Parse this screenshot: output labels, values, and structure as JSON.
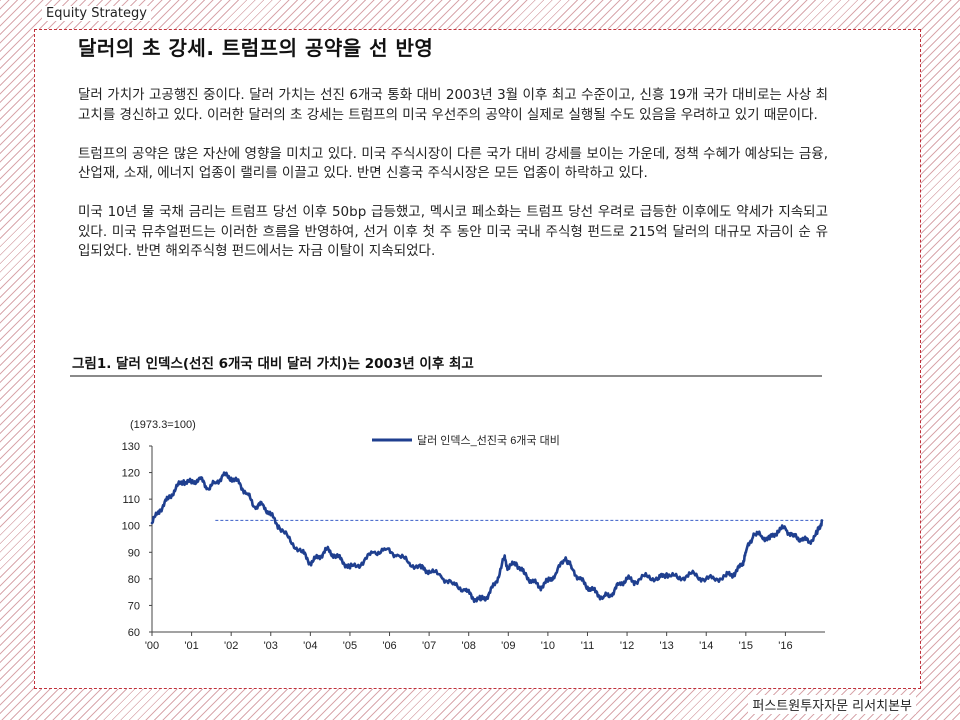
{
  "header": {
    "section": "Equity Strategy"
  },
  "title": "달러의 초 강세. 트럼프의 공약을 선 반영",
  "paragraphs": [
    "달러 가치가 고공행진 중이다. 달러 가치는 선진 6개국 통화 대비 2003년 3월 이후 최고 수준이고, 신흥 19개 국가 대비로는 사상 최고치를 경신하고 있다. 이러한 달러의 초 강세는 트럼프의 미국 우선주의 공약이 실제로 실행될 수도 있음을 우려하고 있기 때문이다.",
    "트럼프의 공약은 많은 자산에 영향을 미치고 있다. 미국 주식시장이 다른 국가 대비 강세를 보이는 가운데, 정책 수혜가 예상되는 금융, 산업재, 소재, 에너지 업종이 랠리를 이끌고 있다. 반면 신흥국 주식시장은 모든 업종이 하락하고 있다.",
    "미국 10년 물 국채 금리는 트럼프 당선 이후 50bp 급등했고, 멕시코 페소화는 트럼프 당선 우려로 급등한 이후에도 약세가 지속되고 있다. 미국 뮤추얼펀드는 이러한 흐름을 반영하여, 선거 이후 첫 주 동안 미국 국내 주식형 펀드로 215억 달러의 대규모 자금이 순 유입되었다. 반면 해외주식형 펀드에서는 자금 이탈이 지속되었다."
  ],
  "figure": {
    "title": "그림1. 달러 인덱스(선진 6개국 대비 달러 가치)는 2003년 이후 최고"
  },
  "chart_data": {
    "type": "line",
    "title": "",
    "unit_note": "(1973.3=100)",
    "xlabel": "",
    "ylabel": "",
    "ylim": [
      60,
      130
    ],
    "yticks": [
      60,
      70,
      80,
      90,
      100,
      110,
      120,
      130
    ],
    "xlim": [
      2000.0,
      2017.0
    ],
    "xticks": [
      "'00",
      "'01",
      "'02",
      "'03",
      "'04",
      "'05",
      "'06",
      "'07",
      "'08",
      "'09",
      "'10",
      "'11",
      "'12",
      "'13",
      "'14",
      "'15",
      "'16"
    ],
    "legend_position": "top",
    "reference_line": {
      "y": 102,
      "x_start": 2001.6,
      "x_end": 2017.0,
      "style": "dashed"
    },
    "colors": {
      "series": "#1f3f8f",
      "reference": "#3a5fc8"
    },
    "series": [
      {
        "name": "달러 인덱스_선진국 6개국 대비",
        "x": [
          2000.0,
          2000.2,
          2000.4,
          2000.6,
          2000.8,
          2001.0,
          2001.2,
          2001.4,
          2001.6,
          2001.8,
          2002.0,
          2002.2,
          2002.4,
          2002.6,
          2002.8,
          2003.0,
          2003.2,
          2003.5,
          2003.8,
          2004.0,
          2004.2,
          2004.4,
          2004.6,
          2004.8,
          2005.0,
          2005.3,
          2005.6,
          2005.9,
          2006.2,
          2006.5,
          2006.8,
          2007.0,
          2007.3,
          2007.6,
          2007.9,
          2008.1,
          2008.3,
          2008.5,
          2008.7,
          2008.9,
          2009.0,
          2009.2,
          2009.4,
          2009.6,
          2009.8,
          2010.0,
          2010.2,
          2010.45,
          2010.6,
          2010.8,
          2011.0,
          2011.2,
          2011.4,
          2011.6,
          2011.8,
          2012.0,
          2012.2,
          2012.5,
          2012.8,
          2013.0,
          2013.3,
          2013.6,
          2013.9,
          2014.2,
          2014.5,
          2014.7,
          2014.9,
          2015.0,
          2015.2,
          2015.4,
          2015.6,
          2015.8,
          2016.0,
          2016.2,
          2016.4,
          2016.6,
          2016.8,
          2016.92
        ],
        "values": [
          101,
          106,
          110,
          114,
          117,
          116,
          118,
          114,
          116,
          119,
          118,
          116,
          112,
          107,
          108,
          104,
          100,
          94,
          90,
          86,
          88,
          91,
          89,
          87,
          84,
          86,
          90,
          91,
          89,
          86,
          84,
          83,
          81,
          78,
          76,
          73,
          72,
          74,
          79,
          88,
          84,
          86,
          82,
          79,
          77,
          79,
          82,
          88,
          84,
          80,
          77,
          75,
          73,
          74,
          78,
          80,
          79,
          81,
          80,
          82,
          80,
          82,
          80,
          80,
          81,
          82,
          85,
          90,
          97,
          96,
          95,
          98,
          99,
          96,
          95,
          94,
          97,
          102
        ]
      }
    ]
  },
  "footer": {
    "org": "퍼스트원투자자문 리서치본부"
  }
}
